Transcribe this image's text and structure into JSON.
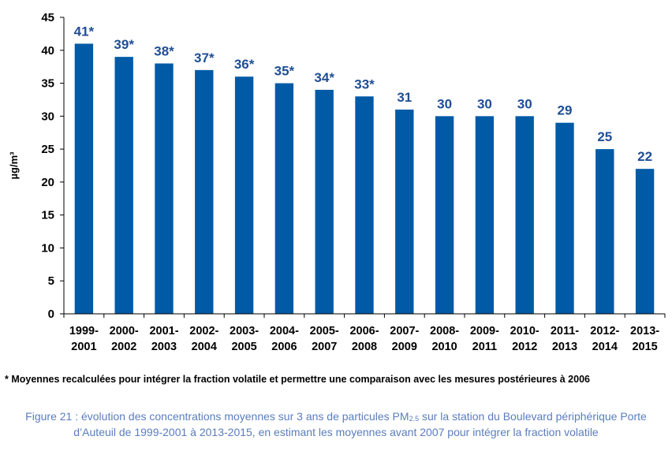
{
  "chart_data": {
    "type": "bar",
    "categories": [
      [
        "1999-",
        "2001"
      ],
      [
        "2000-",
        "2002"
      ],
      [
        "2001-",
        "2003"
      ],
      [
        "2002-",
        "2004"
      ],
      [
        "2003-",
        "2005"
      ],
      [
        "2004-",
        "2006"
      ],
      [
        "2005-",
        "2007"
      ],
      [
        "2006-",
        "2008"
      ],
      [
        "2007-",
        "2009"
      ],
      [
        "2008-",
        "2010"
      ],
      [
        "2009-",
        "2011"
      ],
      [
        "2010-",
        "2012"
      ],
      [
        "2011-",
        "2013"
      ],
      [
        "2012-",
        "2014"
      ],
      [
        "2013-",
        "2015"
      ]
    ],
    "values": [
      41,
      39,
      38,
      37,
      36,
      35,
      34,
      33,
      31,
      30,
      30,
      30,
      29,
      25,
      22
    ],
    "data_labels": [
      "41*",
      "39*",
      "38*",
      "37*",
      "36*",
      "35*",
      "34*",
      "33*",
      "31",
      "30",
      "30",
      "30",
      "29",
      "25",
      "22"
    ],
    "ylabel": "µg/m³",
    "ylim": [
      0,
      45
    ],
    "yticks": [
      0,
      5,
      10,
      15,
      20,
      25,
      30,
      35,
      40,
      45
    ],
    "grid": false,
    "legend": "none",
    "colors": {
      "bar": "#005aa6",
      "data_label": "#1f4e96",
      "axis": "#000000"
    }
  },
  "footnote": "* Moyennes recalculées pour intégrer la fraction volatile et permettre une comparaison avec les mesures postérieures à 2006",
  "caption": {
    "before_sub": "Figure 21 : évolution des concentrations moyennes sur 3 ans de particules PM",
    "sub": "2.5",
    "after_sub": " sur la station du Boulevard périphérique Porte d’Auteuil de 1999-2001 à 2013-2015, en estimant les moyennes avant 2007 pour intégrer la fraction volatile"
  },
  "colors": {
    "caption": "#5a7dbe"
  }
}
